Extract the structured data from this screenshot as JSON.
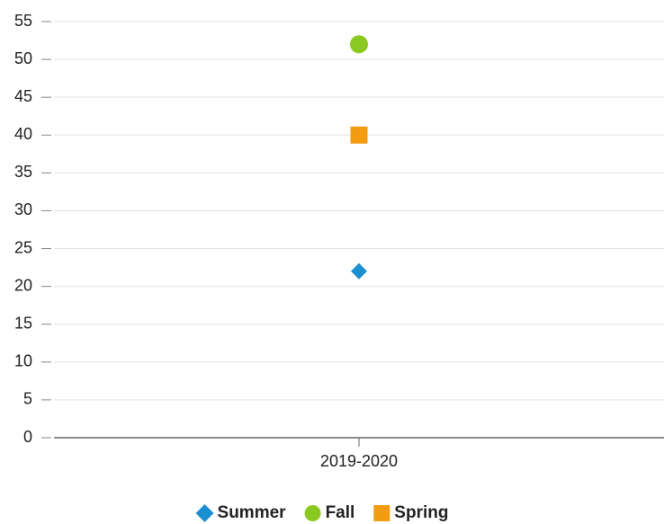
{
  "chart_data": {
    "type": "scatter",
    "categories": [
      "2019-2020"
    ],
    "series": [
      {
        "name": "Summer",
        "color": "#1a8fd1",
        "marker": "diamond",
        "values": [
          22
        ]
      },
      {
        "name": "Fall",
        "color": "#8cc920",
        "marker": "circle",
        "values": [
          52
        ]
      },
      {
        "name": "Spring",
        "color": "#f39c12",
        "marker": "square",
        "values": [
          40
        ]
      }
    ],
    "ylim": [
      0,
      55
    ],
    "yticks": [
      0,
      5,
      10,
      15,
      20,
      25,
      30,
      35,
      40,
      45,
      50,
      55
    ],
    "grid": true,
    "legend": "bottom"
  }
}
